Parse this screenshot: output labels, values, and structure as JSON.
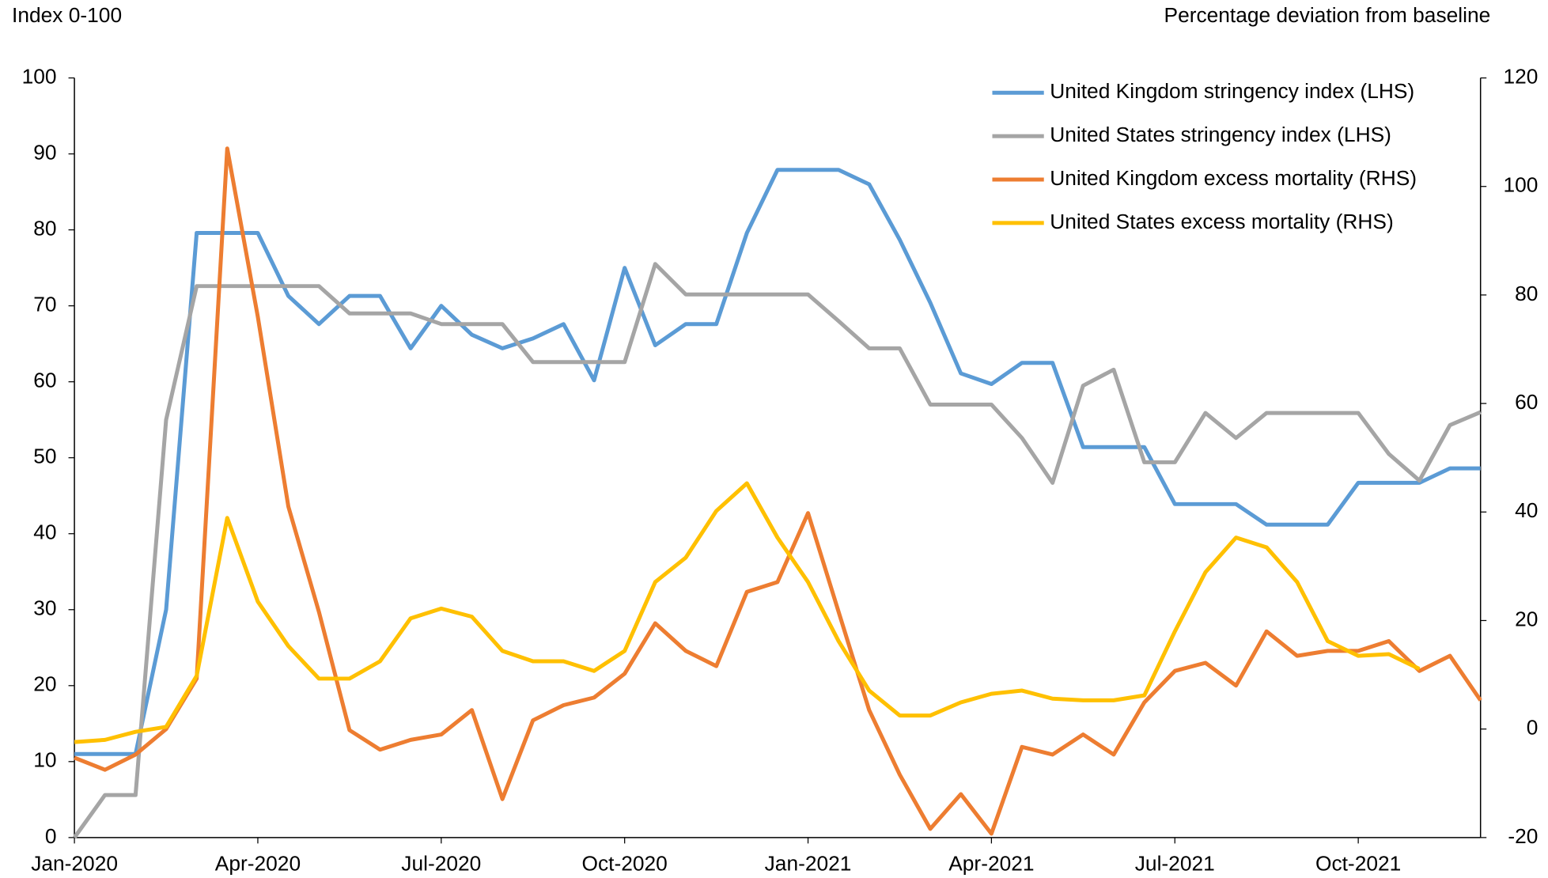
{
  "chart_data": {
    "type": "line",
    "y_label": "Index 0-100",
    "y2_label": "Percentage deviation from baseline",
    "categories": [
      "Jan-2020",
      null,
      null,
      null,
      null,
      null,
      "Apr-2020",
      null,
      null,
      null,
      null,
      null,
      "Jul-2020",
      null,
      null,
      null,
      null,
      null,
      "Oct-2020",
      null,
      null,
      null,
      null,
      null,
      "Jan-2021",
      null,
      null,
      null,
      null,
      null,
      "Apr-2021",
      null,
      null,
      null,
      null,
      null,
      "Jul-2021",
      null,
      null,
      null,
      null,
      null,
      "Oct-2021",
      null,
      null,
      null,
      null
    ],
    "ylim": [
      0,
      100
    ],
    "yticks": [
      0,
      10,
      20,
      30,
      40,
      50,
      60,
      70,
      80,
      90,
      100
    ],
    "y2lim": [
      -20,
      120
    ],
    "y2ticks": [
      -20,
      0,
      20,
      40,
      60,
      80,
      100,
      120
    ],
    "legend": "upper right",
    "series": [
      {
        "name": "United Kingdom stringency index (LHS)",
        "color": "#5b9bd5",
        "axis": "y",
        "values": [
          11,
          11,
          11,
          30,
          79.6,
          79.6,
          79.6,
          71.3,
          67.6,
          71.3,
          71.3,
          64.4,
          70,
          66.2,
          64.4,
          65.7,
          67.6,
          60.2,
          75,
          64.8,
          67.6,
          67.6,
          79.6,
          87.9,
          87.9,
          87.9,
          86,
          78.7,
          70.4,
          61.1,
          59.7,
          62.5,
          62.5,
          51.4,
          51.4,
          51.4,
          43.9,
          43.9,
          43.9,
          41.2,
          41.2,
          41.2,
          46.7,
          46.7,
          46.7,
          48.6,
          48.6
        ]
      },
      {
        "name": "United States stringency index (LHS)",
        "color": "#a5a5a5",
        "axis": "y",
        "values": [
          0,
          5.6,
          5.6,
          55,
          72.6,
          72.6,
          72.6,
          72.6,
          72.6,
          69,
          69,
          69,
          67.6,
          67.6,
          67.6,
          62.6,
          62.6,
          62.6,
          62.6,
          75.5,
          71.5,
          71.5,
          71.5,
          71.5,
          71.5,
          68,
          64.4,
          64.4,
          57,
          57,
          57,
          52.6,
          46.7,
          59.5,
          61.6,
          49.4,
          49.4,
          55.9,
          52.6,
          55.9,
          55.9,
          55.9,
          55.9,
          50.5,
          47,
          54.3,
          56
        ]
      },
      {
        "name": "United Kingdom excess mortality (RHS)",
        "color": "#ed7d31",
        "axis": "y2",
        "values": [
          -5.3,
          -7.5,
          -4.7,
          0,
          9.3,
          107,
          76,
          41,
          21.6,
          -0.2,
          -3.8,
          -2,
          -1,
          3.5,
          -12.9,
          1.6,
          4.4,
          5.8,
          10.2,
          19.5,
          14.4,
          11.6,
          25.3,
          27.1,
          39.8,
          21.6,
          3.5,
          -8.4,
          -18.4,
          -12,
          -19.3,
          -3.3,
          -4.7,
          -1,
          -4.7,
          4.9,
          10.7,
          12.2,
          8,
          18,
          13.5,
          14.4,
          14.4,
          16.2,
          10.7,
          13.5,
          5.3
        ]
      },
      {
        "name": "United States excess mortality (RHS)",
        "color": "#ffc000",
        "axis": "y2",
        "values": [
          -2.4,
          -2,
          -0.5,
          0.4,
          9.8,
          38.9,
          23.5,
          15.3,
          9.3,
          9.3,
          12.5,
          20.4,
          22.2,
          20.7,
          14.4,
          12.5,
          12.5,
          10.7,
          14.4,
          27.1,
          31.6,
          40.2,
          45.3,
          35.3,
          27.1,
          16.2,
          7.1,
          2.5,
          2.5,
          4.9,
          6.5,
          7.1,
          5.6,
          5.3,
          5.3,
          6.2,
          18,
          28.9,
          35.3,
          33.5,
          27.1,
          16.2,
          13.5,
          13.8,
          11.1,
          null,
          null
        ]
      }
    ]
  }
}
